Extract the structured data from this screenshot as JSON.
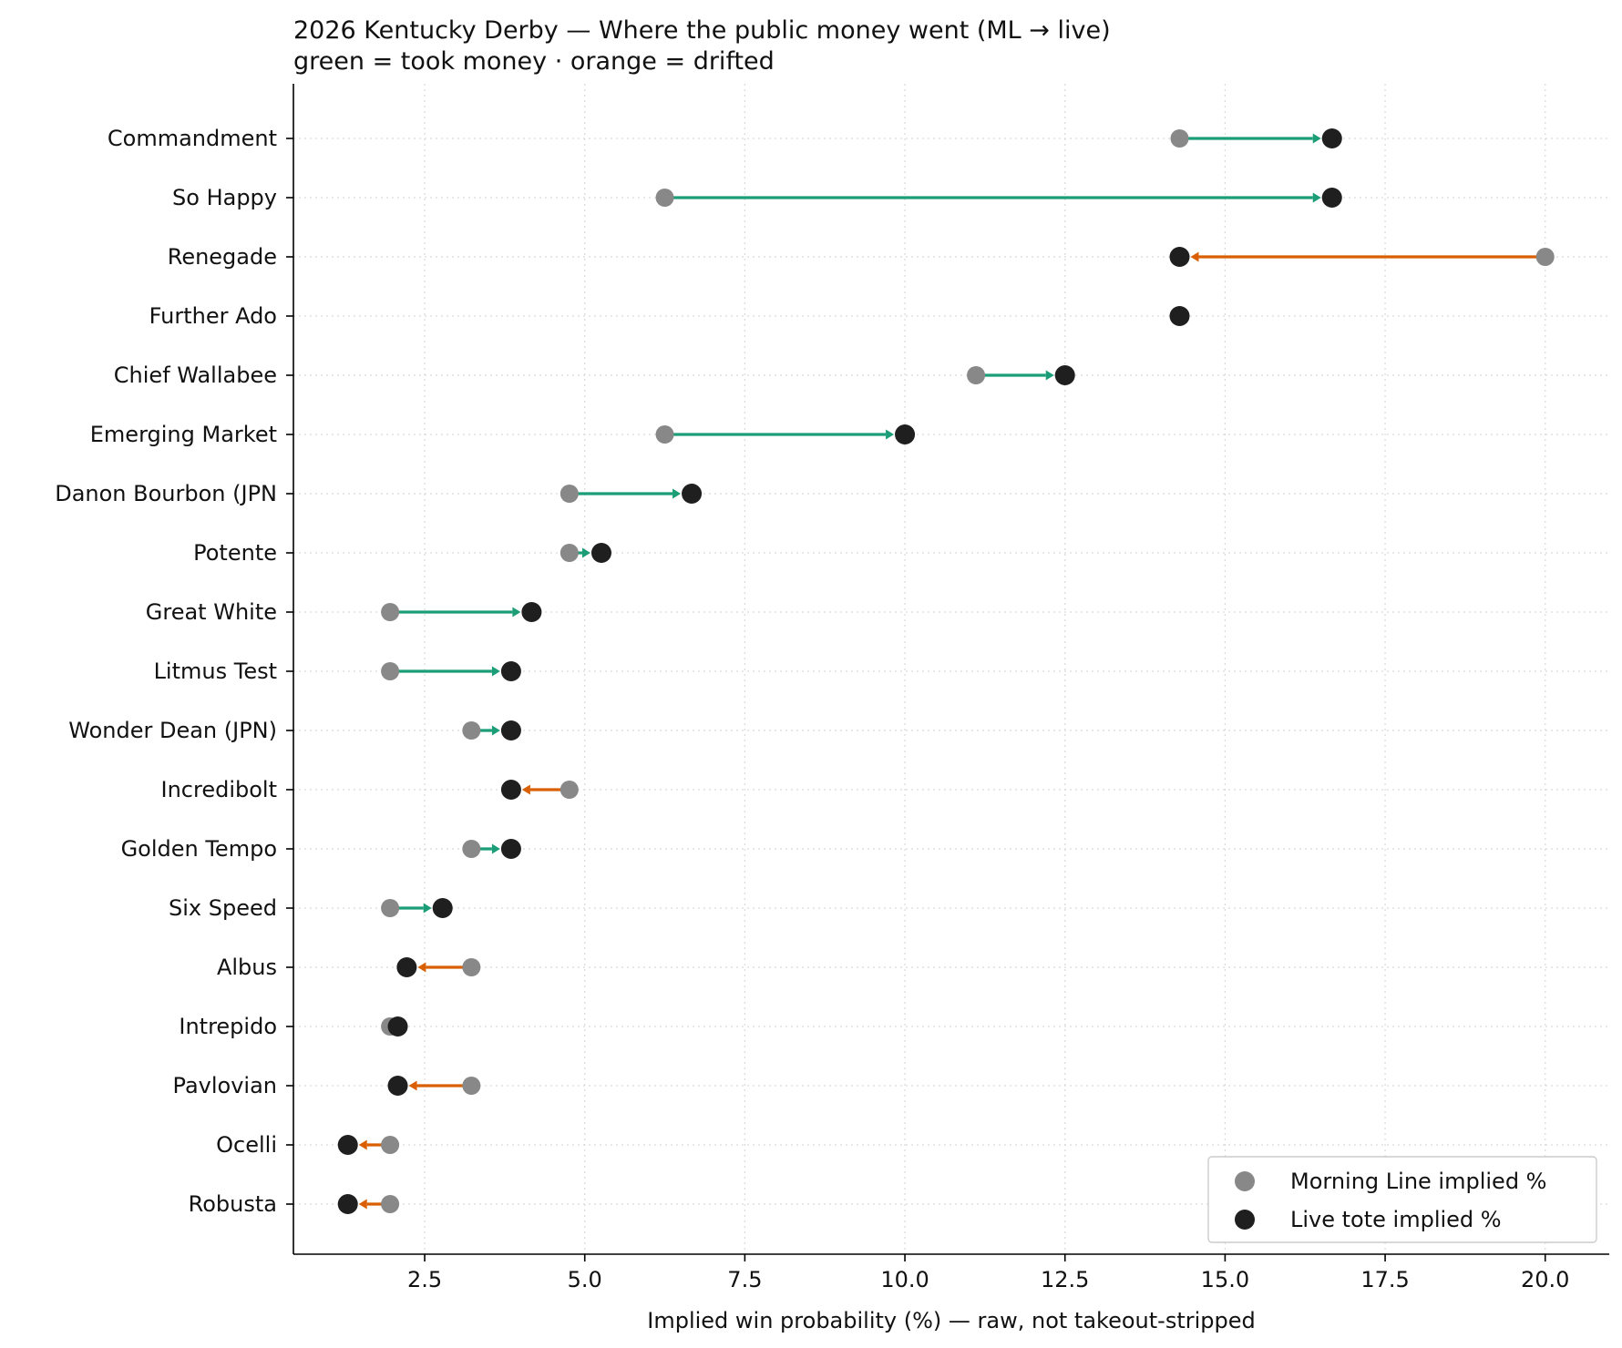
{
  "chart_data": {
    "type": "dumbbell",
    "title": "2026 Kentucky Derby — Where the public money went (ML → live)",
    "subtitle": "green = took money · orange = drifted",
    "xlabel": "Implied win probability (%) — raw, not takeout-stripped",
    "ylabel": "",
    "xlim": [
      0.45,
      21.0
    ],
    "xticks": [
      2.5,
      5.0,
      7.5,
      10.0,
      12.5,
      15.0,
      17.5,
      20.0
    ],
    "xtick_labels": [
      "2.5",
      "5.0",
      "7.5",
      "10.0",
      "12.5",
      "15.0",
      "17.5",
      "20.0"
    ],
    "grid": true,
    "legend_position": "bottom-right",
    "colors": {
      "morning_line": "#888888",
      "live": "#1f1f1f",
      "took_money": "#1b9e77",
      "drifted": "#d95f02"
    },
    "series": [
      {
        "name": "Morning Line implied %",
        "key": "ml"
      },
      {
        "name": "Live tote implied %",
        "key": "live"
      }
    ],
    "horses": [
      {
        "name": "Commandment",
        "ml": 14.29,
        "live": 16.67
      },
      {
        "name": "So Happy",
        "ml": 6.25,
        "live": 16.67
      },
      {
        "name": "Renegade",
        "ml": 20.0,
        "live": 14.29
      },
      {
        "name": "Further Ado",
        "ml": 14.29,
        "live": 14.29
      },
      {
        "name": "Chief Wallabee",
        "ml": 11.11,
        "live": 12.5
      },
      {
        "name": "Emerging Market",
        "ml": 6.25,
        "live": 10.0
      },
      {
        "name": "Danon Bourbon (JPN",
        "ml": 4.76,
        "live": 6.67
      },
      {
        "name": "Potente",
        "ml": 4.76,
        "live": 5.26
      },
      {
        "name": "Great White",
        "ml": 1.96,
        "live": 4.17
      },
      {
        "name": "Litmus Test",
        "ml": 1.96,
        "live": 3.85
      },
      {
        "name": "Wonder Dean (JPN)",
        "ml": 3.23,
        "live": 3.85
      },
      {
        "name": "Incredibolt",
        "ml": 4.76,
        "live": 3.85
      },
      {
        "name": "Golden Tempo",
        "ml": 3.23,
        "live": 3.85
      },
      {
        "name": "Six Speed",
        "ml": 1.96,
        "live": 2.78
      },
      {
        "name": "Albus",
        "ml": 3.23,
        "live": 2.22
      },
      {
        "name": "Intrepido",
        "ml": 1.96,
        "live": 2.08
      },
      {
        "name": "Pavlovian",
        "ml": 3.23,
        "live": 2.08
      },
      {
        "name": "Ocelli",
        "ml": 1.96,
        "live": 1.3
      },
      {
        "name": "Robusta",
        "ml": 1.96,
        "live": 1.3
      }
    ]
  }
}
